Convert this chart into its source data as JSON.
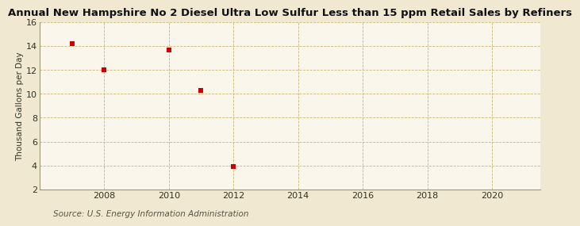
{
  "title": "Annual New Hampshire No 2 Diesel Ultra Low Sulfur Less than 15 ppm Retail Sales by Refiners",
  "ylabel": "Thousand Gallons per Day",
  "source": "Source: U.S. Energy Information Administration",
  "background_color": "#f0e8d0",
  "plot_background_color": "#faf6ec",
  "data_x": [
    2007,
    2008,
    2010,
    2011,
    2012
  ],
  "data_y": [
    14.2,
    12.0,
    13.7,
    10.3,
    3.9
  ],
  "marker_color": "#cc0000",
  "marker_size": 4,
  "xlim": [
    2006.0,
    2021.5
  ],
  "ylim": [
    2,
    16
  ],
  "xticks": [
    2008,
    2010,
    2012,
    2014,
    2016,
    2018,
    2020
  ],
  "yticks": [
    2,
    4,
    6,
    8,
    10,
    12,
    14,
    16
  ],
  "grid_color": "#c8b878",
  "title_fontsize": 9.5,
  "label_fontsize": 7.5,
  "tick_fontsize": 8,
  "source_fontsize": 7.5
}
